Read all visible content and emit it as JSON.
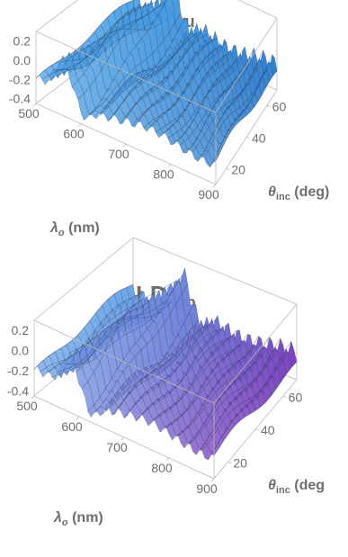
{
  "chart_data": [
    {
      "type": "surface3d",
      "title_main": "LD",
      "title_sub": "tru",
      "x_axis_label_main": "λ",
      "x_axis_label_sub": "o",
      "x_axis_label_unit": " (nm)",
      "x_ticks": [
        "500",
        "600",
        "700",
        "800",
        "900"
      ],
      "xlim": [
        500,
        900
      ],
      "y_axis_label_main": "θ",
      "y_axis_label_sub": "inc",
      "y_axis_label_unit": " (deg)",
      "y_ticks": [
        "20",
        "40",
        "60"
      ],
      "ylim": [
        10,
        70
      ],
      "z_ticks": [
        "0.2",
        "0.0",
        "-0.2",
        "-0.4"
      ],
      "zlim": [
        -0.45,
        0.3
      ],
      "peak_wavelength_nm": 560,
      "oscillation_period_nm": 28,
      "color_scheme": [
        "#4fa4e8",
        "#2f7fd0"
      ]
    },
    {
      "type": "surface3d",
      "title_main": "LD",
      "title_sub": "app",
      "x_axis_label_main": "λ",
      "x_axis_label_sub": "o",
      "x_axis_label_unit": " (nm)",
      "x_ticks": [
        "500",
        "600",
        "700",
        "800",
        "900"
      ],
      "xlim": [
        500,
        900
      ],
      "y_axis_label_main": "θ",
      "y_axis_label_sub": "inc",
      "y_axis_label_unit": " (deg",
      "y_ticks": [
        "20",
        "40",
        "60"
      ],
      "ylim": [
        10,
        70
      ],
      "z_ticks": [
        "0.2",
        "0.0",
        "-0.2",
        "-0.4"
      ],
      "zlim": [
        -0.45,
        0.3
      ],
      "peak_wavelength_nm": 580,
      "oscillation_period_nm": 26,
      "color_scheme": [
        "#6aa8ea",
        "#7a3fbf"
      ]
    }
  ]
}
